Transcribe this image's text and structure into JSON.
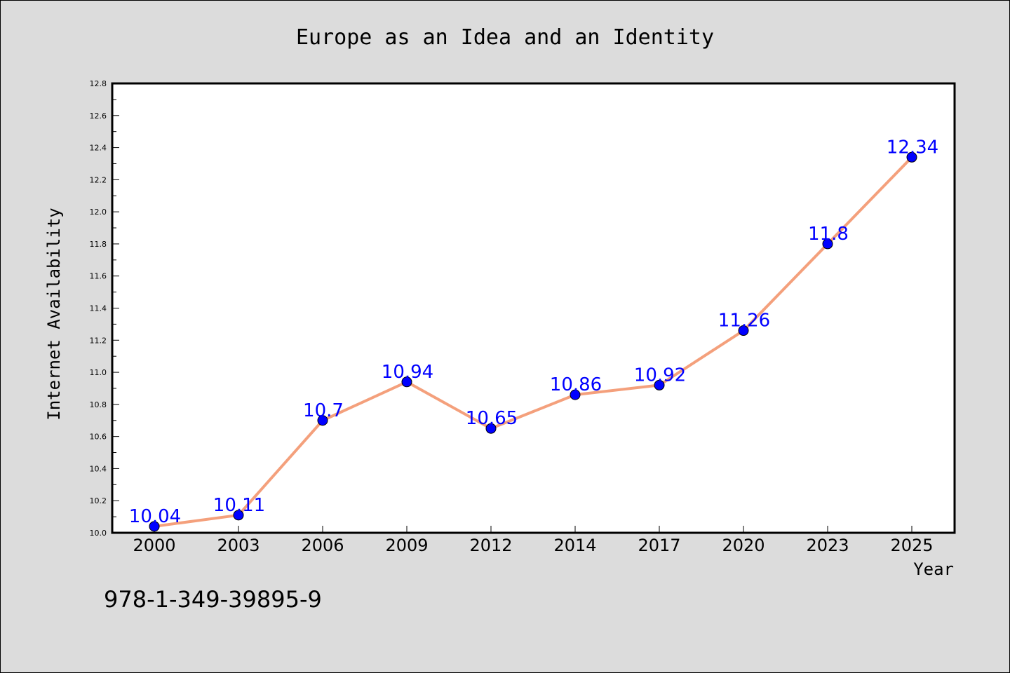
{
  "chart_data": {
    "type": "line",
    "title": "Europe as an Idea and an Identity",
    "xlabel": "Year",
    "ylabel": "Internet Availability",
    "categories": [
      "2000",
      "2003",
      "2006",
      "2009",
      "2012",
      "2014",
      "2017",
      "2020",
      "2023",
      "2025"
    ],
    "series": [
      {
        "values": [
          10.04,
          10.11,
          10.7,
          10.94,
          10.65,
          10.86,
          10.92,
          11.26,
          11.8,
          12.34
        ],
        "data_labels": [
          "10.04",
          "10.11",
          "10.7",
          "10.94",
          "10.65",
          "10.86",
          "10.92",
          "11.26",
          "11.8",
          "12.34"
        ]
      }
    ],
    "ylim": [
      10.0,
      12.8
    ],
    "yticks": [
      "10.0",
      "10.2",
      "10.4",
      "10.6",
      "10.8",
      "11.0",
      "11.2",
      "11.4",
      "11.6",
      "11.8",
      "12.0",
      "12.2",
      "12.4",
      "12.6",
      "12.8"
    ],
    "grid": false,
    "colors": {
      "line": "#f4a07c",
      "marker": "#0000ff",
      "label": "#0000ff",
      "background": "#dcdcdc",
      "plot_background": "#ffffff"
    }
  },
  "footer": {
    "isbn": "978-1-349-39895-9"
  }
}
